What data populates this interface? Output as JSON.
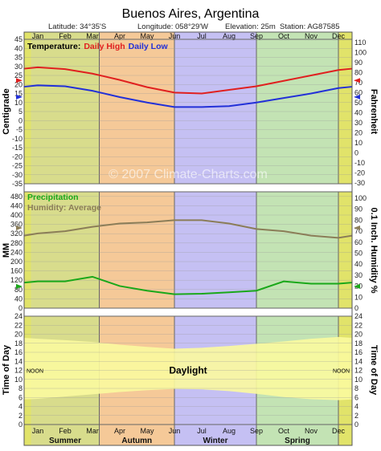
{
  "chart_data": {
    "type": "line",
    "title": "Buenos Aires,  Argentina",
    "station": {
      "latitude": "Latitude: 34°35'S",
      "longitude": "Longitude: 058°29'W",
      "elevation": "Elevation: 25m",
      "station": "Station: AG87585"
    },
    "watermark": "© 2007 Climate-Charts.com",
    "months": [
      "Jan",
      "Feb",
      "Mar",
      "Apr",
      "May",
      "Jun",
      "Jul",
      "Aug",
      "Sep",
      "Oct",
      "Nov",
      "Dec"
    ],
    "seasons": [
      "Summer",
      "Autumn",
      "Winter",
      "Spring"
    ],
    "season_colors": {
      "summer": "#d8dc8c",
      "autumn": "#f5c998",
      "winter": "#c5c0f3",
      "spring": "#c3e3b4",
      "edge": "#e1e36a"
    },
    "temperature": {
      "title": "Temperature:",
      "high_label": "Daily High",
      "low_label": "Daily Low",
      "ylabel_left": "Centigrade",
      "ylabel_right": "Fahrenheit",
      "ylim": [
        -35,
        45
      ],
      "ticks_c": [
        45,
        40,
        35,
        30,
        25,
        20,
        15,
        10,
        5,
        0,
        -5,
        -10,
        -15,
        -20,
        -25,
        -30,
        -35
      ],
      "ticks_f": [
        110,
        100,
        90,
        80,
        70,
        60,
        50,
        40,
        30,
        20,
        10,
        0,
        -10,
        -20,
        -30
      ],
      "series": [
        {
          "name": "Daily High",
          "color": "#e0201f",
          "values": [
            29.5,
            28.5,
            26,
            22.5,
            18.5,
            15.5,
            15,
            17,
            19,
            22,
            25,
            28
          ]
        },
        {
          "name": "Daily Low",
          "color": "#2230d8",
          "values": [
            19.5,
            19,
            16.5,
            13,
            10,
            7.5,
            7.5,
            8,
            10,
            12.5,
            15,
            18
          ]
        }
      ]
    },
    "precipitation": {
      "title": "Precipitation",
      "humidity_title": "Humidity: Average",
      "ylabel_left": "MM",
      "ylabel_right": "0.1 Inch. Humidity %",
      "ylim": [
        0,
        500
      ],
      "ticks_mm": [
        480,
        440,
        400,
        360,
        320,
        280,
        240,
        200,
        160,
        120,
        80,
        40,
        0
      ],
      "ticks_right": [
        100,
        90,
        80,
        70,
        60,
        50,
        40,
        30,
        20,
        10,
        0
      ],
      "series": [
        {
          "name": "Precipitation",
          "color": "#1aa81a",
          "units": "mm",
          "values": [
            115,
            115,
            135,
            95,
            75,
            60,
            62,
            68,
            75,
            115,
            105,
            105
          ]
        },
        {
          "name": "Humidity",
          "color": "#8b7d58",
          "units": "%",
          "values": [
            68,
            70,
            74,
            77,
            78,
            80,
            80,
            77,
            72,
            70,
            66,
            64
          ]
        }
      ]
    },
    "daylight": {
      "title": "Daylight",
      "ylabel": "Time of Day",
      "noon_label": "NOON",
      "ticks": [
        24,
        22,
        20,
        18,
        16,
        14,
        12,
        10,
        8,
        6,
        4,
        2,
        0
      ],
      "ylim": [
        0,
        24
      ],
      "sunrise": [
        5.7,
        6.2,
        6.7,
        7.2,
        7.6,
        7.9,
        7.8,
        7.4,
        6.8,
        6.1,
        5.6,
        5.4
      ],
      "sunset": [
        19.0,
        18.7,
        18.3,
        17.7,
        17.2,
        16.8,
        17.0,
        17.4,
        17.9,
        18.4,
        19.0,
        19.4
      ]
    }
  }
}
